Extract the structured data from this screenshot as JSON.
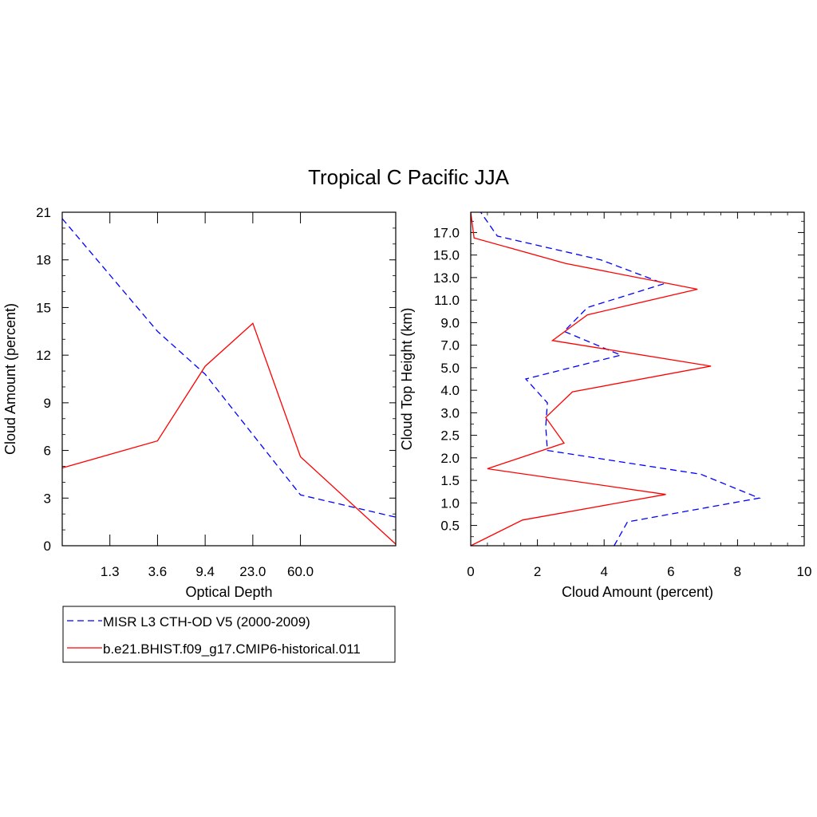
{
  "title": "Tropical C Pacific JJA",
  "colors": {
    "misr": "#0000ff",
    "model": "#ff0000",
    "axis": "#000000"
  },
  "legend": {
    "placement": "below-left",
    "entries": [
      {
        "label": "MISR L3 CTH-OD V5 (2000-2009)",
        "color": "#0000ff",
        "dash": "dashed"
      },
      {
        "label": "b.e21.BHIST.f09_g17.CMIP6-historical.011",
        "color": "#ff0000",
        "dash": "solid"
      }
    ]
  },
  "chart_data": [
    {
      "type": "line",
      "xlabel": "Optical Depth",
      "ylabel": "Cloud Amount (percent)",
      "xticks": [
        "1.3",
        "3.6",
        "9.4",
        "23.0",
        "60.0"
      ],
      "yticks": [
        0,
        3,
        6,
        9,
        12,
        15,
        18,
        21
      ],
      "ylim": [
        0,
        21
      ],
      "x_bins": 7,
      "series": [
        {
          "name": "MISR L3 CTH-OD V5 (2000-2009)",
          "color": "#0000ff",
          "dash": "dashed",
          "values": [
            20.6,
            13.5,
            10.8,
            7.0,
            3.2,
            1.8
          ]
        },
        {
          "name": "b.e21.BHIST.f09_g17.CMIP6-historical.011",
          "color": "#ff0000",
          "dash": "solid",
          "values": [
            4.9,
            6.6,
            11.3,
            14.0,
            5.6,
            0.1
          ]
        }
      ]
    },
    {
      "type": "line",
      "xlabel": "Cloud Amount (percent)",
      "ylabel": "Cloud Top Height (km)",
      "xticks": [
        0,
        2,
        4,
        6,
        8,
        10
      ],
      "xlim": [
        0,
        10
      ],
      "yticks": [
        "0.5",
        "1.0",
        "1.5",
        "2.0",
        "2.5",
        "3.0",
        "4.0",
        "5.0",
        "7.0",
        "9.0",
        "11.0",
        "13.0",
        "15.0",
        "17.0"
      ],
      "series": [
        {
          "name": "MISR L3 CTH-OD V5 (2000-2009)",
          "color": "#0000ff",
          "dash": "dashed",
          "values": [
            4.3,
            4.7,
            8.65,
            6.9,
            2.3,
            2.25,
            2.3,
            1.65,
            4.5,
            2.8,
            3.5,
            5.8,
            3.9,
            0.8,
            0.3
          ]
        },
        {
          "name": "b.e21.BHIST.f09_g17.CMIP6-historical.011",
          "color": "#ff0000",
          "dash": "solid",
          "values": [
            0.0,
            1.55,
            5.85,
            0.5,
            2.8,
            2.25,
            3.05,
            7.2,
            2.45,
            3.5,
            6.8,
            2.85,
            0.1,
            0.0
          ]
        }
      ]
    }
  ]
}
